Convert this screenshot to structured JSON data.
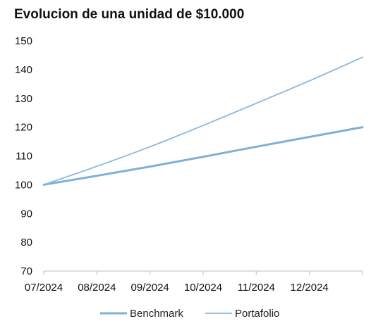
{
  "chart_data": {
    "type": "line",
    "title": "Evolucion de una unidad de $10.000",
    "xlabel": "",
    "ylabel": "",
    "x_ticks": [
      "07/2024",
      "08/2024",
      "09/2024",
      "10/2024",
      "11/2024",
      "12/2024"
    ],
    "x": [
      0,
      1,
      2,
      3,
      4,
      5,
      6
    ],
    "ylim": [
      70,
      150
    ],
    "y_ticks": [
      70,
      80,
      90,
      100,
      110,
      120,
      130,
      140,
      150
    ],
    "grid": false,
    "legend_position": "bottom",
    "series": [
      {
        "name": "Benchmark",
        "values": [
          100,
          103.1,
          106.3,
          109.7,
          113.2,
          116.6,
          120.0
        ],
        "color": "#7fb0d8"
      },
      {
        "name": "Portafolio",
        "values": [
          100,
          106.4,
          113.2,
          120.6,
          128.3,
          136.1,
          144.3
        ],
        "color": "#8ab8dc"
      }
    ]
  }
}
